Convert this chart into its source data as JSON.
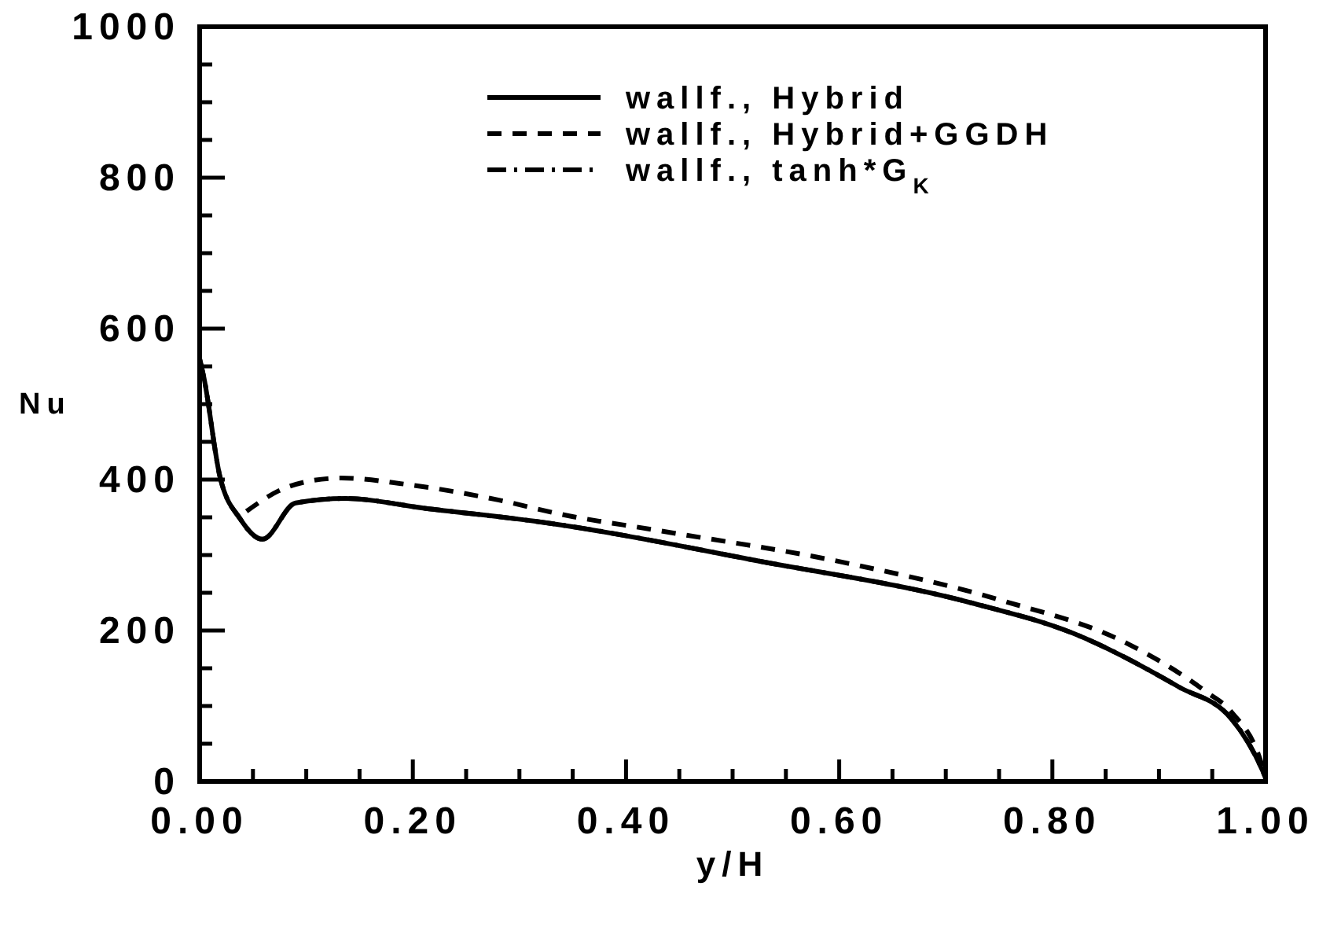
{
  "chart_data": {
    "type": "line",
    "xlabel": "y/H",
    "ylabel": "Nu",
    "xlim": [
      0,
      1
    ],
    "ylim": [
      0,
      1000
    ],
    "xticks": [
      {
        "value": 0,
        "label": "0.00"
      },
      {
        "value": 0.05,
        "label": null
      },
      {
        "value": 0.1,
        "label": null
      },
      {
        "value": 0.15,
        "label": null
      },
      {
        "value": 0.2,
        "label": "0.20"
      },
      {
        "value": 0.25,
        "label": null
      },
      {
        "value": 0.3,
        "label": null
      },
      {
        "value": 0.35,
        "label": null
      },
      {
        "value": 0.4,
        "label": "0.40"
      },
      {
        "value": 0.45,
        "label": null
      },
      {
        "value": 0.5,
        "label": null
      },
      {
        "value": 0.55,
        "label": null
      },
      {
        "value": 0.6,
        "label": "0.60"
      },
      {
        "value": 0.65,
        "label": null
      },
      {
        "value": 0.7,
        "label": null
      },
      {
        "value": 0.75,
        "label": null
      },
      {
        "value": 0.8,
        "label": "0.80"
      },
      {
        "value": 0.85,
        "label": null
      },
      {
        "value": 0.9,
        "label": null
      },
      {
        "value": 0.95,
        "label": null
      },
      {
        "value": 1,
        "label": "1.00"
      }
    ],
    "yticks": [
      0,
      {
        "value": 50,
        "label": null
      },
      {
        "value": 100,
        "label": null
      },
      {
        "value": 150,
        "label": null
      },
      200,
      {
        "value": 250,
        "label": null
      },
      {
        "value": 300,
        "label": null
      },
      {
        "value": 350,
        "label": null
      },
      400,
      {
        "value": 450,
        "label": null
      },
      {
        "value": 500,
        "label": null
      },
      {
        "value": 550,
        "label": null
      },
      600,
      {
        "value": 650,
        "label": null
      },
      {
        "value": 700,
        "label": null
      },
      {
        "value": 750,
        "label": null
      },
      800,
      {
        "value": 850,
        "label": null
      },
      {
        "value": 900,
        "label": null
      },
      {
        "value": 950,
        "label": null
      },
      1000
    ],
    "legend": "top right",
    "grid": false,
    "series": [
      {
        "name": "wallf., Hybrid",
        "color": "#000000",
        "line_style": "solid",
        "x": [
          0,
          0.004,
          0.019,
          0.038,
          0.059,
          0.09,
          0.137,
          0.211,
          0.329,
          0.525,
          0.723,
          0.82,
          0.919,
          0.968,
          0.997,
          1
        ],
        "values": [
          560,
          535,
          404,
          348,
          321,
          369,
          375,
          362,
          342,
          292,
          237,
          196,
          125,
          83,
          15,
          5
        ]
      },
      {
        "name": "wallf., Hybrid+GGDH",
        "color": "#000000",
        "line_style": "dashed",
        "x": [
          0.044,
          0.074,
          0.103,
          0.133,
          0.192,
          0.28,
          0.339,
          0.428,
          0.605,
          0.752,
          0.87,
          0.944,
          0.968,
          0.997,
          1
        ],
        "values": [
          358,
          385,
          398,
          402,
          394,
          373,
          354,
          333,
          290,
          240,
          183,
          119,
          92,
          20,
          5
        ]
      },
      {
        "name": "wallf., tanh*G$_{K}$",
        "color": "#000000",
        "line_style": "dashdot",
        "x": [
          0,
          0.004,
          0.019,
          0.038,
          0.059,
          0.09,
          0.137,
          0.211,
          0.329,
          0.525,
          0.723,
          0.82,
          0.919,
          0.968,
          0.997,
          1
        ],
        "values": [
          560,
          535,
          404,
          348,
          321,
          369,
          375,
          362,
          342,
          292,
          237,
          196,
          125,
          83,
          15,
          5
        ]
      }
    ]
  }
}
